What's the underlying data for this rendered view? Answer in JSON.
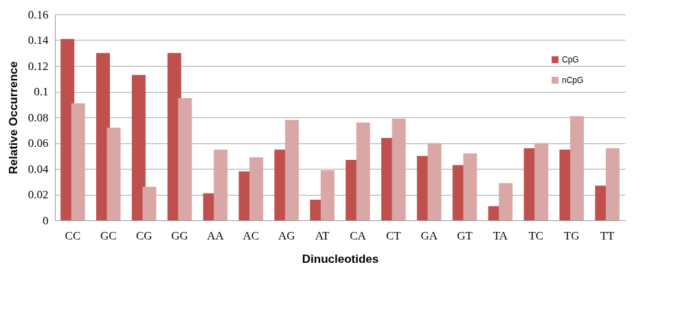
{
  "chart_data": {
    "type": "bar",
    "xlabel": "Dinucleotides",
    "ylabel": "Relative Occurrence",
    "categories": [
      "CC",
      "GC",
      "CG",
      "GG",
      "AA",
      "AC",
      "AG",
      "AT",
      "CA",
      "CT",
      "GA",
      "GT",
      "TA",
      "TC",
      "TG",
      "TT"
    ],
    "series": [
      {
        "name": "CpG",
        "color": "#c0504d",
        "values": [
          0.141,
          0.13,
          0.113,
          0.13,
          0.021,
          0.038,
          0.055,
          0.016,
          0.047,
          0.064,
          0.05,
          0.043,
          0.011,
          0.056,
          0.055,
          0.027
        ]
      },
      {
        "name": "nCpG",
        "color": "#d9a7a6",
        "values": [
          0.091,
          0.072,
          0.026,
          0.095,
          0.055,
          0.049,
          0.078,
          0.039,
          0.076,
          0.079,
          0.06,
          0.052,
          0.029,
          0.06,
          0.081,
          0.056
        ]
      }
    ],
    "ylim": [
      0,
      0.16
    ],
    "yticks": [
      0,
      0.02,
      0.04,
      0.06,
      0.08,
      0.1,
      0.12,
      0.14,
      0.16
    ],
    "grid": "y",
    "legend": "top right"
  }
}
